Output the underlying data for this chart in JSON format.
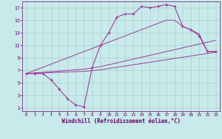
{
  "title": "",
  "xlabel": "Windchill (Refroidissement éolien,°C)",
  "bg_color": "#c8eaea",
  "line_color": "#993399",
  "grid_color": "#aacccc",
  "text_color": "#660066",
  "x_hours": [
    0,
    1,
    2,
    3,
    4,
    5,
    6,
    7,
    8,
    9,
    10,
    11,
    12,
    13,
    14,
    15,
    16,
    17,
    18,
    19,
    20,
    21,
    22,
    23
  ],
  "temp_curve": [
    6.5,
    6.5,
    6.5,
    5.5,
    4.0,
    2.5,
    1.5,
    1.2,
    7.5,
    11.0,
    13.0,
    15.5,
    16.0,
    16.0,
    17.2,
    17.0,
    17.2,
    17.5,
    17.2,
    14.0,
    13.5,
    12.5,
    10.0,
    10.0
  ],
  "linear1": [
    6.5,
    7.0,
    7.5,
    8.0,
    8.5,
    9.0,
    9.5,
    10.0,
    10.5,
    11.0,
    11.5,
    12.0,
    12.5,
    13.0,
    13.5,
    14.0,
    14.5,
    15.0,
    15.0,
    14.0,
    13.5,
    12.8,
    10.0,
    10.0
  ],
  "linear2": [
    6.5,
    6.6,
    6.7,
    6.8,
    6.9,
    7.0,
    7.1,
    7.2,
    7.4,
    7.6,
    7.9,
    8.2,
    8.5,
    8.8,
    9.1,
    9.4,
    9.7,
    10.0,
    10.3,
    10.6,
    10.9,
    11.2,
    11.5,
    11.8
  ],
  "linear3": [
    6.5,
    6.55,
    6.6,
    6.65,
    6.7,
    6.75,
    6.8,
    6.85,
    6.95,
    7.1,
    7.3,
    7.5,
    7.7,
    7.9,
    8.1,
    8.3,
    8.5,
    8.7,
    8.9,
    9.1,
    9.3,
    9.5,
    9.7,
    9.9
  ],
  "ylim": [
    1,
    18
  ],
  "xlim": [
    0,
    23
  ],
  "yticks": [
    1,
    3,
    5,
    7,
    9,
    11,
    13,
    15,
    17
  ],
  "xticks": [
    0,
    1,
    2,
    3,
    4,
    5,
    6,
    7,
    8,
    9,
    10,
    11,
    12,
    13,
    14,
    15,
    16,
    17,
    18,
    19,
    20,
    21,
    22,
    23
  ]
}
